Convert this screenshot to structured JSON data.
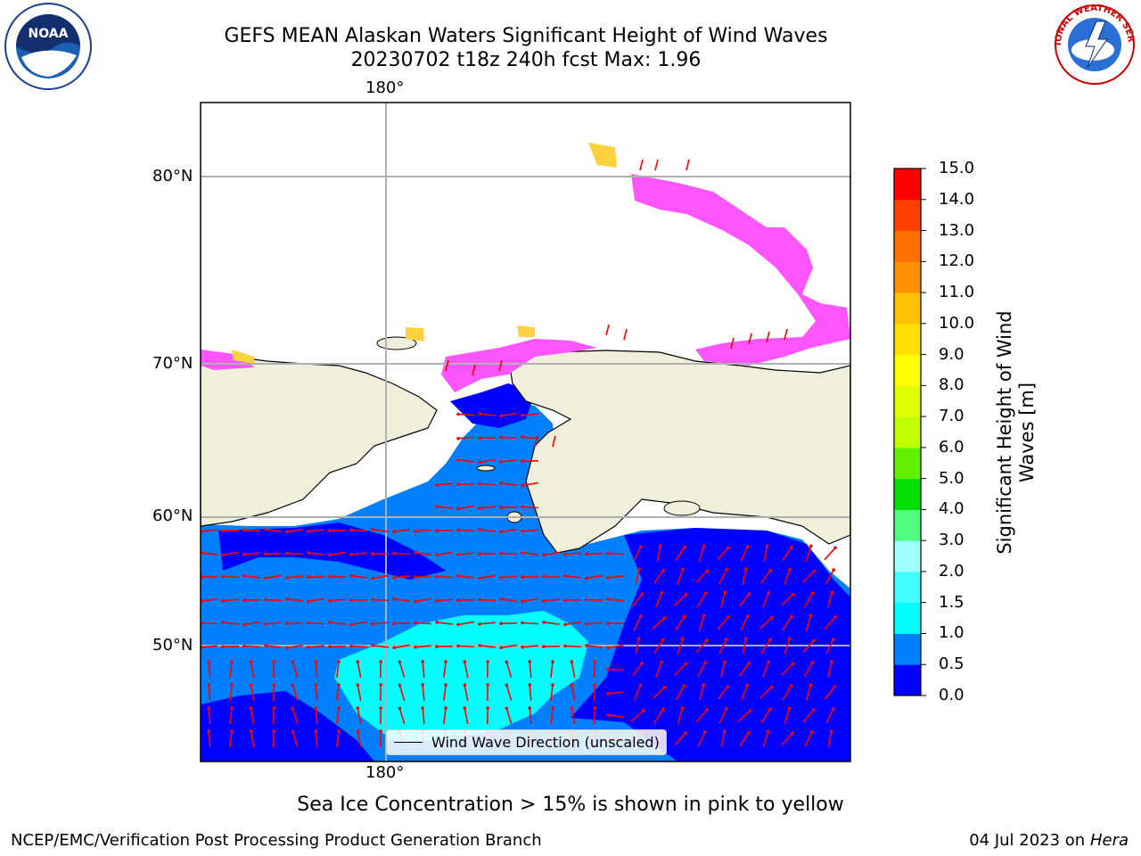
{
  "title": {
    "line1": "GEFS MEAN Alaskan Waters Significant Height of Wind Waves",
    "line2": "20230702 t18z 240h fcst   Max: 1.96"
  },
  "logos": {
    "left": "NOAA",
    "right": "NATIONAL WEATHER SERVICE"
  },
  "map": {
    "lon_labels": [
      "180°",
      "180°"
    ],
    "lat_labels": [
      "80°N",
      "70°N",
      "60°N",
      "50°N"
    ],
    "legend_label": "Wind Wave Direction (unscaled)",
    "colors": {
      "land": "#efefdb",
      "ocean_low": "#0000ff",
      "ocean_mid": "#0080ff",
      "ocean_high": "#00ffff",
      "arrow": "#ff0000",
      "ice": "#ff55ff",
      "ice_high": "#ffd040"
    }
  },
  "colorbar": {
    "label": "Significant Height of Wind Waves [m]",
    "ticks": [
      "0.0",
      "0.5",
      "1.0",
      "1.5",
      "2.0",
      "3.0",
      "4.0",
      "5.0",
      "6.0",
      "7.0",
      "8.0",
      "9.0",
      "10.0",
      "11.0",
      "12.0",
      "13.0",
      "14.0",
      "15.0"
    ],
    "colors": [
      "#0000ff",
      "#0080ff",
      "#00ffff",
      "#40ffff",
      "#a0ffff",
      "#50ff80",
      "#00e000",
      "#60f000",
      "#c0ff00",
      "#e0ff00",
      "#ffff00",
      "#ffe000",
      "#ffc000",
      "#ff9000",
      "#ff7000",
      "#ff4000",
      "#ff0000"
    ]
  },
  "footer": {
    "note": "Sea Ice Concentration > 15% is shown in pink to yellow",
    "credit_left": "NCEP/EMC/Verification Post Processing Product Generation Branch",
    "credit_date": "04 Jul 2023 on ",
    "credit_machine": "Hera"
  }
}
